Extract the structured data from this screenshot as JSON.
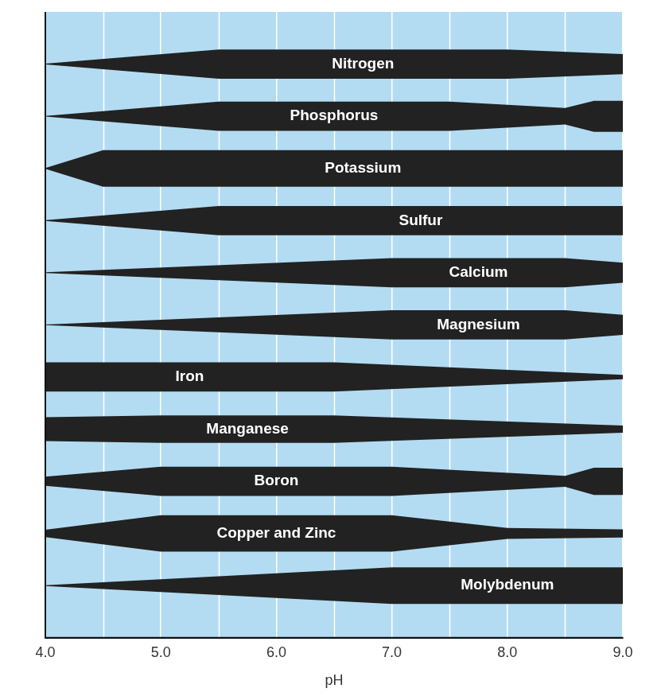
{
  "chart_data": {
    "type": "band",
    "xlabel": "pH",
    "xlim": [
      4,
      9
    ],
    "xticks": [
      {
        "value": 4,
        "label": "4.0"
      },
      {
        "value": 5,
        "label": "5.0"
      },
      {
        "value": 6,
        "label": "6.0"
      },
      {
        "value": 7,
        "label": "7.0"
      },
      {
        "value": 8,
        "label": "8.0"
      },
      {
        "value": 9,
        "label": "9.0"
      }
    ],
    "grid": true,
    "series": [
      {
        "name": "Nitrogen",
        "color": "#222222",
        "x": [
          4.0,
          5.5,
          8.0,
          9.0
        ],
        "values": [
          0.02,
          0.8,
          0.8,
          0.55
        ]
      },
      {
        "name": "Phosphorus",
        "color": "#222222",
        "x": [
          4.0,
          5.5,
          7.5,
          8.5,
          8.75,
          9.0
        ],
        "values": [
          0.02,
          0.8,
          0.8,
          0.45,
          0.85,
          0.85
        ]
      },
      {
        "name": "Potassium",
        "color": "#222222",
        "x": [
          4.0,
          4.5,
          9.0
        ],
        "values": [
          0.02,
          1.0,
          1.0
        ]
      },
      {
        "name": "Sulfur",
        "color": "#222222",
        "x": [
          4.0,
          5.5,
          9.0
        ],
        "values": [
          0.02,
          0.8,
          0.8
        ]
      },
      {
        "name": "Calcium",
        "color": "#222222",
        "x": [
          4.0,
          7.0,
          8.5,
          9.0
        ],
        "values": [
          0.02,
          0.8,
          0.8,
          0.55
        ]
      },
      {
        "name": "Magnesium",
        "color": "#222222",
        "x": [
          4.0,
          7.0,
          8.5,
          9.0
        ],
        "values": [
          0.02,
          0.8,
          0.8,
          0.55
        ]
      },
      {
        "name": "Iron",
        "color": "#222222",
        "x": [
          4.0,
          6.5,
          9.0
        ],
        "values": [
          0.8,
          0.8,
          0.12
        ]
      },
      {
        "name": "Manganese",
        "color": "#222222",
        "x": [
          4.0,
          5.0,
          6.5,
          9.0
        ],
        "values": [
          0.65,
          0.75,
          0.75,
          0.2
        ]
      },
      {
        "name": "Boron",
        "color": "#222222",
        "x": [
          4.0,
          5.0,
          7.0,
          8.5,
          8.75,
          9.0
        ],
        "values": [
          0.25,
          0.8,
          0.8,
          0.3,
          0.75,
          0.75
        ]
      },
      {
        "name": "Copper and Zinc",
        "color": "#222222",
        "x": [
          4.0,
          5.0,
          7.0,
          8.0,
          9.0
        ],
        "values": [
          0.2,
          1.0,
          1.0,
          0.3,
          0.22
        ]
      },
      {
        "name": "Molybdenum",
        "color": "#222222",
        "x": [
          4.0,
          7.0,
          9.0
        ],
        "values": [
          0.02,
          1.0,
          1.0
        ]
      }
    ]
  }
}
